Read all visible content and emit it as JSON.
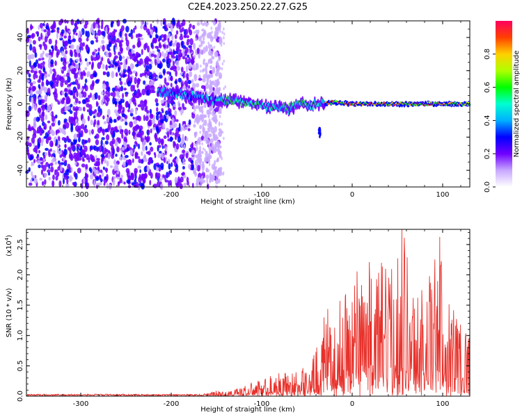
{
  "title": "C2E4.2023.250.22.27.G25",
  "chart_data": [
    {
      "type": "heatmap",
      "xlabel": "Height of straight line (km)",
      "ylabel": "Frequency (Hz)",
      "xlim": [
        -360,
        130
      ],
      "ylim": [
        -50,
        50
      ],
      "x_ticks": [
        -300,
        -200,
        -100,
        0,
        100
      ],
      "x_tick_labels": [
        "-300",
        "-200",
        "-100",
        "0",
        "100"
      ],
      "y_ticks": [
        -40,
        -20,
        0,
        20,
        40
      ],
      "y_tick_labels": [
        "-40",
        "-20",
        "0",
        "20",
        "40"
      ],
      "grid": false,
      "colorbar": {
        "label": "Normalized spectral amplitude",
        "range": [
          0.0,
          1.0
        ],
        "ticks": [
          0.0,
          0.2,
          0.4,
          0.6,
          0.8
        ],
        "tick_labels": [
          "0.0",
          "0.2",
          "0.4",
          "0.6",
          "0.8"
        ],
        "colormap": [
          "#ffffff",
          "#c8a8ff",
          "#7000ff",
          "#0000ff",
          "#00b0ff",
          "#00ffd0",
          "#00ff00",
          "#b0ff00",
          "#ffd000",
          "#ff4000",
          "#ff0060"
        ]
      },
      "ridge_center": [
        [
          -210,
          7
        ],
        [
          -190,
          6
        ],
        [
          -170,
          4
        ],
        [
          -150,
          2
        ],
        [
          -130,
          2
        ],
        [
          -110,
          0
        ],
        [
          -90,
          -2
        ],
        [
          -70,
          -3
        ],
        [
          -55,
          1
        ],
        [
          -45,
          -1
        ],
        [
          -35,
          0
        ],
        [
          -20,
          1
        ],
        [
          0,
          0
        ],
        [
          20,
          0
        ],
        [
          40,
          0
        ],
        [
          60,
          0
        ],
        [
          80,
          0
        ],
        [
          100,
          0
        ],
        [
          120,
          0
        ]
      ]
    },
    {
      "type": "line",
      "xlabel": "Height of straight line (km)",
      "ylabel": "SNR (10 * v/v)",
      "y_multiplier_label": "(x10",
      "y_multiplier_exp": "4",
      "xlim": [
        -360,
        130
      ],
      "ylim": [
        0,
        2.75
      ],
      "x_ticks": [
        -300,
        -200,
        -100,
        0,
        100
      ],
      "x_tick_labels": [
        "-300",
        "-200",
        "-100",
        "0",
        "100"
      ],
      "y_ticks": [
        0.0,
        0.5,
        1.0,
        1.5,
        2.0,
        2.5
      ],
      "y_tick_labels": [
        "0.0",
        "0.5",
        "1.0",
        "1.5",
        "2.0",
        "2.5"
      ],
      "color": "#e8302a",
      "envelope": [
        [
          -360,
          0.02
        ],
        [
          -200,
          0.02
        ],
        [
          -165,
          0.03
        ],
        [
          -150,
          0.08
        ],
        [
          -140,
          0.06
        ],
        [
          -120,
          0.15
        ],
        [
          -100,
          0.25
        ],
        [
          -80,
          0.35
        ],
        [
          -60,
          0.35
        ],
        [
          -45,
          0.5
        ],
        [
          -35,
          0.9
        ],
        [
          -28,
          1.3
        ],
        [
          -20,
          0.95
        ],
        [
          -10,
          1.6
        ],
        [
          0,
          1.7
        ],
        [
          10,
          2.2
        ],
        [
          20,
          1.9
        ],
        [
          30,
          2.0
        ],
        [
          40,
          1.8
        ],
        [
          48,
          2.1
        ],
        [
          55,
          2.75
        ],
        [
          62,
          2.1
        ],
        [
          70,
          1.5
        ],
        [
          80,
          1.7
        ],
        [
          90,
          1.95
        ],
        [
          97,
          2.35
        ],
        [
          105,
          1.5
        ],
        [
          115,
          1.4
        ],
        [
          122,
          1.2
        ],
        [
          130,
          1.0
        ]
      ],
      "peak": {
        "x": 55,
        "y": 2.75
      }
    }
  ]
}
